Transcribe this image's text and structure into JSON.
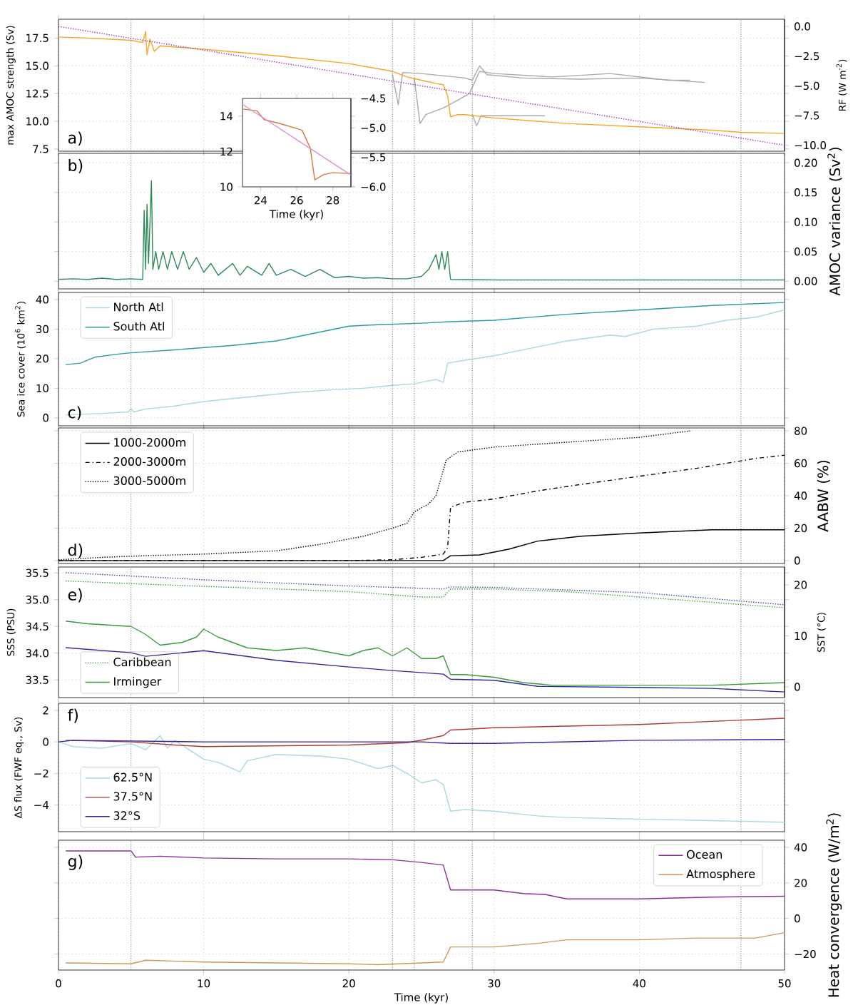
{
  "chart_data": [
    {
      "type": "line",
      "xlim": [
        0,
        50
      ],
      "xticks": [
        0,
        10,
        20,
        30,
        40,
        50
      ],
      "tick_labels": "y",
      "grid": true,
      "ylim": [
        7.3,
        19.2
      ],
      "yticks": [
        {
          "value": 7.5,
          "label": "7.5"
        },
        {
          "value": 10,
          "label": "10.0"
        },
        {
          "value": 12.5,
          "label": "12.5"
        },
        {
          "value": 15,
          "label": "15.0"
        },
        {
          "value": 17.5,
          "label": "17.5"
        }
      ],
      "y2lim": [
        -10.5,
        0.6
      ],
      "y2ticks": [
        {
          "value": -10,
          "label": "−10.0"
        },
        {
          "value": -7.5,
          "label": "−7.5"
        },
        {
          "value": -5,
          "label": "−5.0"
        },
        {
          "value": -2.5,
          "label": "−2.5"
        },
        {
          "value": 0,
          "label": "0.0"
        }
      ],
      "ylabel": "max AMOC strength (Sv)",
      "y2label": "RF (W m$^{-2}$)",
      "annotations": [
        "a)"
      ],
      "ref_lines": [
        {
          "axis": "x",
          "value": 5,
          "color": "#808080",
          "line_style": "dotted"
        },
        {
          "axis": "x",
          "value": 23,
          "color": "#808080",
          "line_style": "dotted"
        },
        {
          "axis": "x",
          "value": 24.5,
          "color": "#808080",
          "line_style": "dotted"
        },
        {
          "axis": "x",
          "value": 28.5,
          "color": "#808080",
          "line_style": "dotted"
        },
        {
          "axis": "x",
          "value": 47,
          "color": "#808080",
          "line_style": "dotted"
        }
      ],
      "series": [
        {
          "color": "#aaaaaa",
          "x": [
            23,
            23.4,
            23.7,
            25,
            28,
            28.5,
            29,
            29.5,
            32,
            36,
            40,
            44.5
          ],
          "values": [
            14.2,
            11.5,
            14.4,
            14.3,
            13.9,
            13.7,
            15.0,
            14.2,
            13.9,
            13.8,
            13.9,
            13.5
          ]
        },
        {
          "color": "#aaaaaa",
          "x": [
            24.5,
            24.9,
            25.3,
            26.5,
            27.5,
            28.3,
            29,
            30,
            34,
            38,
            42,
            43.5
          ],
          "values": [
            13.9,
            9.8,
            10.6,
            11.2,
            11.9,
            12.5,
            14.5,
            14.3,
            14.0,
            14.3,
            13.7,
            13.7
          ]
        },
        {
          "color": "#aaaaaa",
          "x": [
            28.5,
            28.8,
            29.1,
            33.5
          ],
          "values": [
            10.6,
            9.6,
            10.5,
            10.5
          ]
        },
        {
          "color": "#f5a623",
          "x": [
            0,
            2,
            5,
            5.8,
            6.0,
            6.1,
            6.3,
            6.6,
            7,
            10,
            15,
            20,
            23,
            24,
            25,
            26,
            26.5,
            26.8,
            27,
            27.5,
            28,
            30,
            35,
            40,
            45,
            47,
            50
          ],
          "values": [
            17.6,
            17.5,
            17.3,
            17.1,
            18.1,
            16.0,
            17.4,
            16.3,
            16.8,
            16.5,
            15.9,
            15.2,
            14.5,
            14.0,
            13.7,
            13.4,
            13.3,
            12.3,
            10.4,
            10.6,
            10.6,
            10.3,
            9.8,
            9.5,
            9.2,
            9.0,
            8.9
          ]
        },
        {
          "color": "#9933cc",
          "line_style": "dotted",
          "axis": "y2",
          "x": [
            0,
            50
          ],
          "values": [
            0.0,
            -10.0
          ]
        }
      ]
    },
    {
      "type": "line",
      "xlim": [
        0,
        50
      ],
      "xticks": [
        0,
        10,
        20,
        30,
        40,
        50
      ],
      "tick_labels": "y",
      "grid": true,
      "y2lim": [
        -0.013,
        0.216
      ],
      "y2ticks": [
        {
          "value": 0,
          "label": "0.00"
        },
        {
          "value": 0.05,
          "label": "0.05"
        },
        {
          "value": 0.1,
          "label": "0.10"
        },
        {
          "value": 0.15,
          "label": "0.15"
        },
        {
          "value": 0.2,
          "label": "0.20"
        }
      ],
      "y2label": "AMOC variance (Sv$^{2}$)",
      "annotations": [
        "b)"
      ],
      "ref_lines": [
        {
          "axis": "x",
          "value": 5,
          "color": "#808080",
          "line_style": "dotted"
        },
        {
          "axis": "x",
          "value": 23,
          "color": "#808080",
          "line_style": "dotted"
        },
        {
          "axis": "x",
          "value": 24.5,
          "color": "#808080",
          "line_style": "dotted"
        },
        {
          "axis": "x",
          "value": 28.5,
          "color": "#808080",
          "line_style": "dotted"
        },
        {
          "axis": "x",
          "value": 47,
          "color": "#808080",
          "line_style": "dotted"
        }
      ],
      "series": [
        {
          "color": "#2e8b57",
          "axis": "y2",
          "x": [
            0,
            1,
            2,
            3,
            4,
            5,
            5.8,
            5.9,
            6.0,
            6.1,
            6.2,
            6.4,
            6.5,
            6.7,
            6.9,
            7.2,
            7.5,
            7.8,
            8.2,
            8.6,
            9,
            9.5,
            10,
            10.5,
            11,
            12,
            12.5,
            13,
            14,
            14.5,
            15,
            16,
            17,
            18,
            19,
            20,
            21,
            22,
            23,
            24,
            25,
            25.5,
            26,
            26.2,
            26.4,
            26.6,
            26.8,
            27,
            30,
            35,
            40,
            45,
            50
          ],
          "values": [
            0.003,
            0.004,
            0.003,
            0.005,
            0.003,
            0.004,
            0.003,
            0.12,
            0.02,
            0.13,
            0.03,
            0.17,
            0.02,
            0.05,
            0.02,
            0.05,
            0.02,
            0.05,
            0.02,
            0.05,
            0.02,
            0.04,
            0.015,
            0.03,
            0.01,
            0.03,
            0.01,
            0.025,
            0.01,
            0.03,
            0.01,
            0.02,
            0.008,
            0.02,
            0.006,
            0.008,
            0.005,
            0.006,
            0.004,
            0.004,
            0.008,
            0.02,
            0.045,
            0.02,
            0.05,
            0.02,
            0.05,
            0.003,
            0.002,
            0.002,
            0.002,
            0.002,
            0.002
          ]
        }
      ]
    },
    {
      "type": "line",
      "xlim": [
        0,
        50
      ],
      "xticks": [
        0,
        10,
        20,
        30,
        40,
        50
      ],
      "tick_labels": "y",
      "grid": true,
      "legend": "top left",
      "ylim": [
        -2.7,
        42.4
      ],
      "yticks": [
        0,
        10,
        20,
        30,
        40
      ],
      "ylabel": "Sea ice cover (10$^{6}$ km$^{2}$)",
      "annotations": [
        "c)"
      ],
      "ref_lines": [
        {
          "axis": "x",
          "value": 5,
          "color": "#808080",
          "line_style": "dotted"
        },
        {
          "axis": "x",
          "value": 23,
          "color": "#808080",
          "line_style": "dotted"
        },
        {
          "axis": "x",
          "value": 24.5,
          "color": "#808080",
          "line_style": "dotted"
        },
        {
          "axis": "x",
          "value": 28.5,
          "color": "#808080",
          "line_style": "dotted"
        },
        {
          "axis": "x",
          "value": 47,
          "color": "#808080",
          "line_style": "dotted"
        }
      ],
      "series": [
        {
          "name": "North Atl",
          "color": "#a8d8e0",
          "x": [
            0.5,
            3,
            4.8,
            5,
            5.2,
            6,
            8,
            10,
            13,
            16,
            19,
            21,
            23,
            24.5,
            26,
            26.5,
            26.8,
            28,
            30,
            32,
            35,
            38,
            39,
            41,
            44,
            46,
            48,
            50
          ],
          "values": [
            1,
            1.5,
            2,
            3,
            2,
            3,
            4,
            5.5,
            7,
            8.5,
            9.5,
            10,
            11,
            11.5,
            13,
            12,
            18.5,
            19.5,
            21,
            23,
            26,
            28,
            27.5,
            30,
            31,
            33,
            34,
            36.5
          ]
        },
        {
          "name": "South Atl",
          "color": "#2a9d9d",
          "x": [
            0.5,
            1.5,
            2.5,
            4,
            5,
            8,
            12,
            15,
            17,
            20,
            22,
            25,
            27,
            30,
            35,
            40,
            45,
            50
          ],
          "values": [
            18,
            18.5,
            20.5,
            21.5,
            22,
            23,
            24.5,
            26,
            28,
            31,
            31.5,
            32,
            32.5,
            33,
            35,
            36.5,
            38,
            39
          ]
        }
      ]
    },
    {
      "type": "line",
      "xlim": [
        0,
        50
      ],
      "xticks": [
        0,
        10,
        20,
        30,
        40,
        50
      ],
      "tick_labels": "y",
      "grid": true,
      "legend": "top left",
      "y2lim": [
        -1.8,
        81.8
      ],
      "y2ticks": [
        0,
        20,
        40,
        60,
        80
      ],
      "y2label": "AABW (%)",
      "annotations": [
        "d)"
      ],
      "ref_lines": [
        {
          "axis": "x",
          "value": 5,
          "color": "#808080",
          "line_style": "dotted"
        },
        {
          "axis": "x",
          "value": 23,
          "color": "#808080",
          "line_style": "dotted"
        },
        {
          "axis": "x",
          "value": 24.5,
          "color": "#808080",
          "line_style": "dotted"
        },
        {
          "axis": "x",
          "value": 28.5,
          "color": "#808080",
          "line_style": "dotted"
        },
        {
          "axis": "x",
          "value": 47,
          "color": "#808080",
          "line_style": "dotted"
        }
      ],
      "series": [
        {
          "name": "1000-2000m",
          "color": "#000000",
          "line_style": "solid",
          "axis": "y2",
          "x": [
            0,
            10,
            20,
            26.5,
            27,
            29,
            31,
            33,
            36,
            40,
            45,
            50
          ],
          "values": [
            0,
            0,
            0,
            0,
            3,
            3.5,
            7,
            12,
            15,
            17,
            19,
            19
          ]
        },
        {
          "name": "2000-3000m",
          "color": "#000000",
          "line_style": "dashdot",
          "axis": "y2",
          "x": [
            0,
            10,
            20,
            23,
            25,
            26.5,
            26.8,
            27,
            28,
            30,
            33,
            36,
            40,
            44,
            48,
            50
          ],
          "values": [
            0,
            0,
            0,
            0.5,
            2,
            4,
            8,
            33,
            36,
            38,
            43,
            47,
            52,
            57,
            63,
            65
          ]
        },
        {
          "name": "3000-5000m",
          "color": "#000000",
          "line_style": "dotted",
          "axis": "y2",
          "x": [
            0,
            3,
            6,
            10,
            15,
            18,
            21,
            23,
            24,
            24.5,
            25.5,
            26,
            26.7,
            27.5,
            30,
            35,
            40,
            43.5
          ],
          "values": [
            0.5,
            2,
            3,
            4,
            6,
            10,
            15,
            20,
            23,
            30,
            35,
            40,
            62,
            67,
            70,
            73,
            76,
            80
          ]
        }
      ]
    },
    {
      "type": "line",
      "xlim": [
        0,
        50
      ],
      "xticks": [
        0,
        10,
        20,
        30,
        40,
        50
      ],
      "tick_labels": "y",
      "grid": true,
      "legend": "bottom left",
      "ylim": [
        33.17,
        35.61
      ],
      "yticks": [
        33.5,
        {
          "value": 34,
          "label": "34.0"
        },
        34.5,
        {
          "value": 35,
          "label": "35.0"
        },
        35.5
      ],
      "y2lim": [
        -2.1,
        23.5
      ],
      "y2ticks": [
        0,
        10,
        20
      ],
      "ylabel": "SSS (PSU)",
      "y2label": "SST (°C)",
      "annotations": [
        "e)"
      ],
      "ref_lines": [
        {
          "axis": "x",
          "value": 5,
          "color": "#808080",
          "line_style": "dotted"
        },
        {
          "axis": "x",
          "value": 23,
          "color": "#808080",
          "line_style": "dotted"
        },
        {
          "axis": "x",
          "value": 24.5,
          "color": "#808080",
          "line_style": "dotted"
        },
        {
          "axis": "x",
          "value": 28.5,
          "color": "#808080",
          "line_style": "dotted"
        },
        {
          "axis": "x",
          "value": 47,
          "color": "#808080",
          "line_style": "dotted"
        }
      ],
      "series": [
        {
          "name": "Caribbean",
          "color": "#3a9a3a",
          "line_style": "dotted",
          "x": [
            0.5,
            5,
            10,
            20,
            25,
            26.5,
            27,
            30,
            35,
            40,
            45,
            50
          ],
          "values": [
            35.35,
            35.3,
            35.25,
            35.15,
            35.05,
            35.05,
            35.2,
            35.2,
            35.15,
            35.05,
            34.95,
            34.85
          ]
        },
        {
          "name": "Irminger",
          "color": "#3a9a3a",
          "line_style": "solid",
          "x": [
            0.5,
            2,
            5,
            6,
            7,
            8.5,
            9.5,
            10,
            11,
            13,
            15,
            17,
            20,
            21,
            22,
            23,
            24,
            25,
            26,
            26.5,
            27,
            28,
            30,
            32,
            34,
            40,
            45,
            50
          ],
          "values": [
            34.6,
            34.55,
            34.5,
            34.35,
            34.15,
            34.2,
            34.3,
            34.45,
            34.3,
            34.1,
            34.05,
            34.1,
            33.95,
            34.05,
            34.1,
            33.95,
            34.1,
            33.9,
            33.9,
            33.95,
            33.6,
            33.6,
            33.55,
            33.45,
            33.4,
            33.4,
            33.4,
            33.45
          ]
        },
        {
          "color": "#4040b0",
          "line_style": "dotted",
          "axis": "y2",
          "x": [
            0.5,
            10,
            20,
            26.5,
            27,
            30,
            40,
            50
          ],
          "values": [
            22.4,
            21,
            19.8,
            19.2,
            19.6,
            19.5,
            18.5,
            16.1
          ]
        },
        {
          "color": "#2b2b9b",
          "line_style": "solid",
          "axis": "y2",
          "x": [
            0.5,
            5,
            6,
            10,
            15,
            20,
            23,
            26.5,
            27,
            30,
            33,
            40,
            45,
            50
          ],
          "values": [
            7.7,
            6.7,
            6.0,
            7.1,
            5.2,
            3.9,
            3.2,
            2.5,
            1.5,
            1.3,
            0.1,
            -0.1,
            -0.3,
            -1.0
          ]
        }
      ]
    },
    {
      "type": "line",
      "xlim": [
        0,
        50
      ],
      "xticks": [
        0,
        10,
        20,
        30,
        40,
        50
      ],
      "tick_labels": "y",
      "grid": true,
      "legend": "bottom left",
      "ylim": [
        -5.7,
        2.45
      ],
      "yticks": [
        {
          "value": -4,
          "label": "−4"
        },
        {
          "value": -2,
          "label": "−2"
        },
        0,
        2
      ],
      "ylabel": "ΔS flux (FWF eq., Sv)",
      "annotations": [
        "f)"
      ],
      "ref_lines": [
        {
          "axis": "x",
          "value": 5,
          "color": "#808080",
          "line_style": "dotted"
        },
        {
          "axis": "x",
          "value": 23,
          "color": "#808080",
          "line_style": "dotted"
        },
        {
          "axis": "x",
          "value": 24.5,
          "color": "#808080",
          "line_style": "dotted"
        },
        {
          "axis": "x",
          "value": 28.5,
          "color": "#808080",
          "line_style": "dotted"
        },
        {
          "axis": "x",
          "value": 47,
          "color": "#808080",
          "line_style": "dotted"
        }
      ],
      "series": [
        {
          "name": "62.5°N",
          "color": "#a8d8e0",
          "x": [
            0,
            1,
            3,
            5,
            6,
            7,
            7.5,
            8,
            9,
            10,
            11,
            12.5,
            13,
            14,
            15,
            18,
            20,
            22,
            23,
            24,
            25,
            26,
            26.5,
            27,
            28,
            30,
            33,
            35,
            40,
            45,
            50
          ],
          "values": [
            0,
            -0.3,
            -0.4,
            -0.1,
            -0.5,
            0.4,
            -0.4,
            0.1,
            -0.5,
            -1.1,
            -1.3,
            -1.9,
            -1.2,
            -1.0,
            -0.8,
            -0.9,
            -1.1,
            -1.7,
            -1.5,
            -2.0,
            -2.6,
            -2.4,
            -2.7,
            -4.4,
            -4.3,
            -4.4,
            -4.7,
            -4.8,
            -4.9,
            -5.0,
            -5.1
          ]
        },
        {
          "name": "37.5°N",
          "color": "#b03a3a",
          "x": [
            0.5,
            5,
            8,
            10,
            15,
            20,
            24,
            25.5,
            26.5,
            27,
            28,
            30,
            35,
            40,
            45,
            50
          ],
          "values": [
            0.1,
            0,
            -0.2,
            -0.3,
            -0.25,
            -0.2,
            -0.05,
            0.2,
            0.4,
            0.75,
            0.8,
            0.9,
            1.0,
            1.1,
            1.3,
            1.5
          ]
        },
        {
          "name": "32°S",
          "color": "#2b2b9b",
          "x": [
            0,
            1,
            10,
            20,
            25,
            27,
            30,
            35,
            40,
            50
          ],
          "values": [
            0,
            0.1,
            0,
            0,
            0,
            -0.1,
            -0.1,
            0,
            0.1,
            0.15
          ]
        }
      ]
    },
    {
      "type": "line",
      "xlim": [
        0,
        50
      ],
      "xticks": [
        0,
        10,
        20,
        30,
        40,
        50
      ],
      "grid": true,
      "legend": "top right",
      "y2lim": [
        -29,
        44
      ],
      "y2ticks": [
        {
          "value": -20,
          "label": "−20"
        },
        0,
        20,
        40
      ],
      "xlabel": "Time (kyr)",
      "y2label": "Heat convergence (W/m$^{2}$)",
      "annotations": [
        "g)"
      ],
      "ref_lines": [
        {
          "axis": "x",
          "value": 5,
          "color": "#808080",
          "line_style": "dotted"
        },
        {
          "axis": "x",
          "value": 23,
          "color": "#808080",
          "line_style": "dotted"
        },
        {
          "axis": "x",
          "value": 24.5,
          "color": "#808080",
          "line_style": "dotted"
        },
        {
          "axis": "x",
          "value": 28.5,
          "color": "#808080",
          "line_style": "dotted"
        },
        {
          "axis": "x",
          "value": 47,
          "color": "#808080",
          "line_style": "dotted"
        }
      ],
      "series": [
        {
          "name": "Ocean",
          "color": "#8b2f9b",
          "axis": "y2",
          "x": [
            0.5,
            5,
            5.3,
            7,
            10,
            15,
            20,
            23,
            25,
            26.5,
            27,
            30,
            32,
            33.5,
            35,
            40,
            45,
            50
          ],
          "values": [
            38,
            38,
            34.5,
            35,
            34,
            33.5,
            33.5,
            33,
            31.5,
            30,
            16,
            16,
            14,
            13.5,
            11,
            11,
            12,
            12.5
          ]
        },
        {
          "name": "Atmosphere",
          "color": "#d2965a",
          "axis": "y2",
          "x": [
            0.5,
            5,
            6,
            10,
            15,
            20,
            22,
            25,
            26.5,
            27,
            30,
            33,
            35,
            40,
            44,
            48,
            50
          ],
          "values": [
            -25,
            -25.5,
            -23.5,
            -24.5,
            -25,
            -25.5,
            -26,
            -25,
            -24.5,
            -16,
            -16,
            -14,
            -12,
            -12,
            -11,
            -11,
            -8
          ]
        }
      ]
    },
    {
      "type": "line",
      "xlim": [
        23,
        29
      ],
      "xticks": [
        24,
        26,
        28
      ],
      "ylim": [
        10,
        15
      ],
      "yticks": [
        10,
        12,
        14
      ],
      "y2lim": [
        -6.0,
        -4.5
      ],
      "y2ticks": [
        {
          "value": -6,
          "label": "−6.0"
        },
        {
          "value": -5.5,
          "label": "−5.5"
        },
        {
          "value": -5,
          "label": "−5.0"
        },
        {
          "value": -4.5,
          "label": "−4.5"
        }
      ],
      "xlabel": "Time (kyr)",
      "series": [
        {
          "color": "#d9773a",
          "x": [
            23,
            23.8,
            24.2,
            25,
            26,
            26.3,
            26.75,
            27,
            27.5,
            28,
            29
          ],
          "values": [
            14.4,
            14.3,
            13.8,
            13.6,
            13.3,
            13.2,
            12.2,
            10.4,
            10.7,
            10.8,
            10.75
          ]
        },
        {
          "color": "#d98cd9",
          "axis": "y2",
          "x": [
            23,
            29
          ],
          "values": [
            -4.6,
            -5.8
          ]
        }
      ]
    }
  ]
}
